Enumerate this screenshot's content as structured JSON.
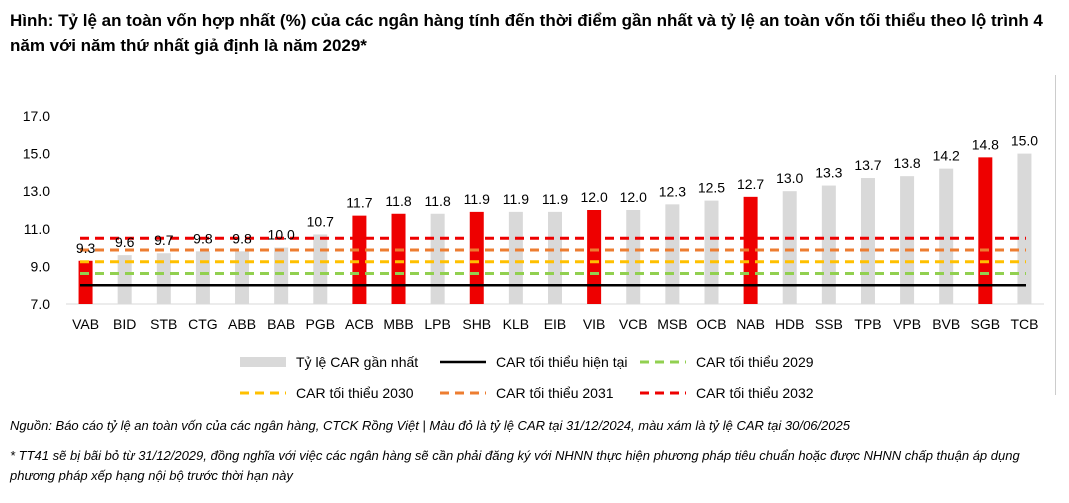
{
  "title": "Hình: Tỷ lệ an toàn vốn hợp nhất (%) của các ngân hàng tính đến thời điểm gần nhất và tỷ lệ an toàn vốn tối thiểu theo lộ trình 4 năm với năm thứ nhất giả định là năm 2029*",
  "source_note": "Nguồn: Báo cáo tỷ lệ an toàn vốn của các ngân hàng, CTCK Rồng Việt | Màu đỏ là tỷ lệ CAR tại 31/12/2024, màu xám là tỷ lệ CAR tại 30/06/2025",
  "footnote": "* TT41 sẽ bị bãi bỏ từ 31/12/2029, đồng nghĩa với việc các ngân hàng sẽ cần phải đăng ký với NHNN thực hiện phương pháp tiêu chuẩn hoặc được NHNN chấp thuận áp dụng phương pháp xếp hạng nội bộ trước thời hạn này",
  "chart_data": {
    "type": "bar",
    "categories": [
      "VAB",
      "BID",
      "STB",
      "CTG",
      "ABB",
      "BAB",
      "PGB",
      "ACB",
      "MBB",
      "LPB",
      "SHB",
      "KLB",
      "EIB",
      "VIB",
      "VCB",
      "MSB",
      "OCB",
      "NAB",
      "HDB",
      "SSB",
      "TPB",
      "VPB",
      "BVB",
      "SGB",
      "TCB"
    ],
    "values": [
      9.3,
      9.6,
      9.7,
      9.8,
      9.8,
      10.0,
      10.7,
      11.7,
      11.8,
      11.8,
      11.9,
      11.9,
      11.9,
      12.0,
      12.0,
      12.3,
      12.5,
      12.7,
      13.0,
      13.3,
      13.7,
      13.8,
      14.2,
      14.8,
      15.0
    ],
    "value_labels": [
      "9.3",
      "9.6",
      "9.7",
      "9.8",
      "9.8",
      "10.0",
      "10.7",
      "11.7",
      "11.8",
      "11.8",
      "11.9",
      "11.9",
      "11.9",
      "12.0",
      "12.0",
      "12.3",
      "12.5",
      "12.7",
      "13.0",
      "13.3",
      "13.7",
      "13.8",
      "14.2",
      "14.8",
      "15.0"
    ],
    "highlight_red": [
      "VAB",
      "ACB",
      "MBB",
      "SHB",
      "VIB",
      "NAB",
      "SGB"
    ],
    "bar_colors": {
      "default": "#d9d9d9",
      "highlight": "#ee0000"
    },
    "ylim": [
      7.0,
      17.0
    ],
    "yticks": [
      "7.0",
      "9.0",
      "11.0",
      "13.0",
      "15.0",
      "17.0"
    ],
    "grid": false,
    "bar_series_name": "Tỷ lệ CAR gần nhất",
    "reference_lines": [
      {
        "name": "CAR tối thiểu hiện tại",
        "value": 8.0,
        "color": "#000000",
        "style": "solid"
      },
      {
        "name": "CAR tối thiểu 2029",
        "value": 8.625,
        "color": "#92d050",
        "style": "dashed"
      },
      {
        "name": "CAR tối thiểu 2030",
        "value": 9.25,
        "color": "#ffc000",
        "style": "dashed"
      },
      {
        "name": "CAR tối thiểu 2031",
        "value": 9.875,
        "color": "#ed7d31",
        "style": "dashed"
      },
      {
        "name": "CAR tối thiểu 2032",
        "value": 10.5,
        "color": "#ee0000",
        "style": "dashed"
      }
    ],
    "legend_position": "bottom"
  }
}
